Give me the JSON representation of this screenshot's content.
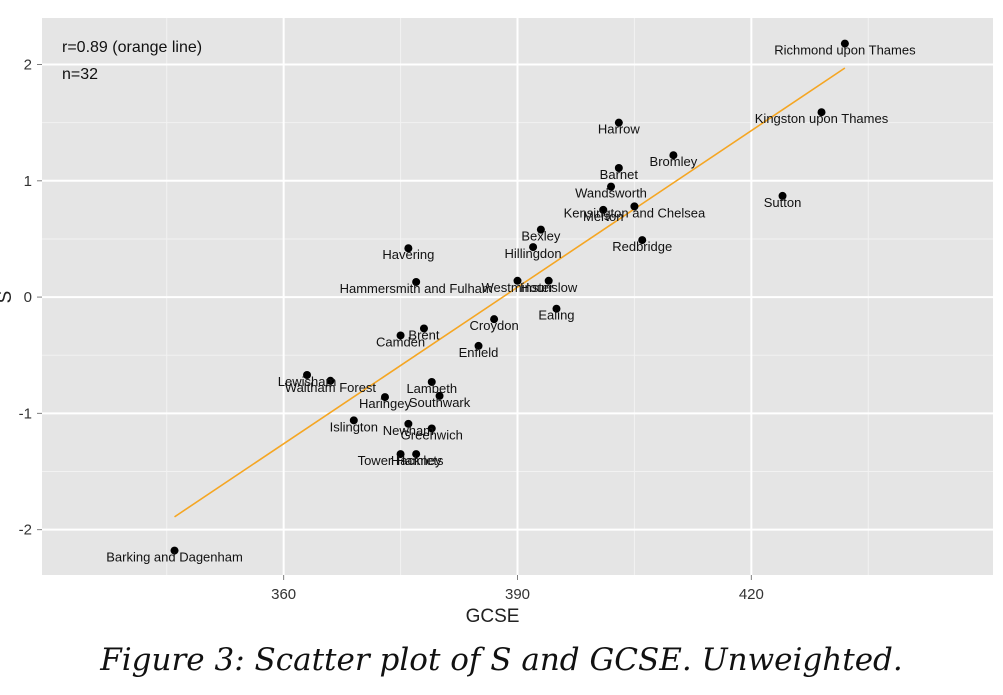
{
  "caption": "Figure 3: Scatter plot of S and GCSE. Unweighted.",
  "chart_data": {
    "type": "scatter",
    "title": "",
    "xlabel": "GCSE",
    "ylabel": "S",
    "xlim": [
      329,
      451
    ],
    "ylim": [
      -2.39,
      2.4
    ],
    "x_ticks": [
      360,
      390,
      420
    ],
    "y_ticks": [
      -2,
      -1,
      0,
      1,
      2
    ],
    "grid": true,
    "annotations": [
      "r=0.89 (orange line)",
      "n=32"
    ],
    "colors": {
      "panel": "#e5e5e5",
      "grid": "#ffffff",
      "point": "#000000",
      "fit_line": "#f5a623",
      "text": "#111111"
    },
    "fit_line": {
      "x": [
        346,
        432
      ],
      "y": [
        -1.89,
        1.97
      ]
    },
    "points": [
      {
        "label": "Richmond upon Thames",
        "x": 432,
        "y": 2.18
      },
      {
        "label": "Kingston upon Thames",
        "x": 429,
        "y": 1.59
      },
      {
        "label": "Harrow",
        "x": 403,
        "y": 1.5
      },
      {
        "label": "Bromley",
        "x": 410,
        "y": 1.22
      },
      {
        "label": "Barnet",
        "x": 403,
        "y": 1.11
      },
      {
        "label": "Wandsworth",
        "x": 402,
        "y": 0.95
      },
      {
        "label": "Sutton",
        "x": 424,
        "y": 0.87
      },
      {
        "label": "Kensington and Chelsea",
        "x": 405,
        "y": 0.78
      },
      {
        "label": "Merton",
        "x": 401,
        "y": 0.75
      },
      {
        "label": "Bexley",
        "x": 393,
        "y": 0.58
      },
      {
        "label": "Redbridge",
        "x": 406,
        "y": 0.49
      },
      {
        "label": "Hillingdon",
        "x": 392,
        "y": 0.43
      },
      {
        "label": "Havering",
        "x": 376,
        "y": 0.42
      },
      {
        "label": "Hammersmith and Fulham",
        "x": 377,
        "y": 0.13
      },
      {
        "label": "Westminster",
        "x": 390,
        "y": 0.14
      },
      {
        "label": "Hounslow",
        "x": 394,
        "y": 0.14
      },
      {
        "label": "Ealing",
        "x": 395,
        "y": -0.1
      },
      {
        "label": "Croydon",
        "x": 387,
        "y": -0.19
      },
      {
        "label": "Brent",
        "x": 378,
        "y": -0.27
      },
      {
        "label": "Camden",
        "x": 375,
        "y": -0.33
      },
      {
        "label": "Enfield",
        "x": 385,
        "y": -0.42
      },
      {
        "label": "Lewisham",
        "x": 363,
        "y": -0.67
      },
      {
        "label": "Waltham Forest",
        "x": 366,
        "y": -0.72
      },
      {
        "label": "Lambeth",
        "x": 379,
        "y": -0.73
      },
      {
        "label": "Haringey",
        "x": 373,
        "y": -0.86
      },
      {
        "label": "Southwark",
        "x": 380,
        "y": -0.85
      },
      {
        "label": "Islington",
        "x": 369,
        "y": -1.06
      },
      {
        "label": "Newham",
        "x": 376,
        "y": -1.09
      },
      {
        "label": "Greenwich",
        "x": 379,
        "y": -1.13
      },
      {
        "label": "Tower Hamlets",
        "x": 375,
        "y": -1.35
      },
      {
        "label": "Hackney",
        "x": 377,
        "y": -1.35
      },
      {
        "label": "Barking and Dagenham",
        "x": 346,
        "y": -2.18
      }
    ]
  }
}
